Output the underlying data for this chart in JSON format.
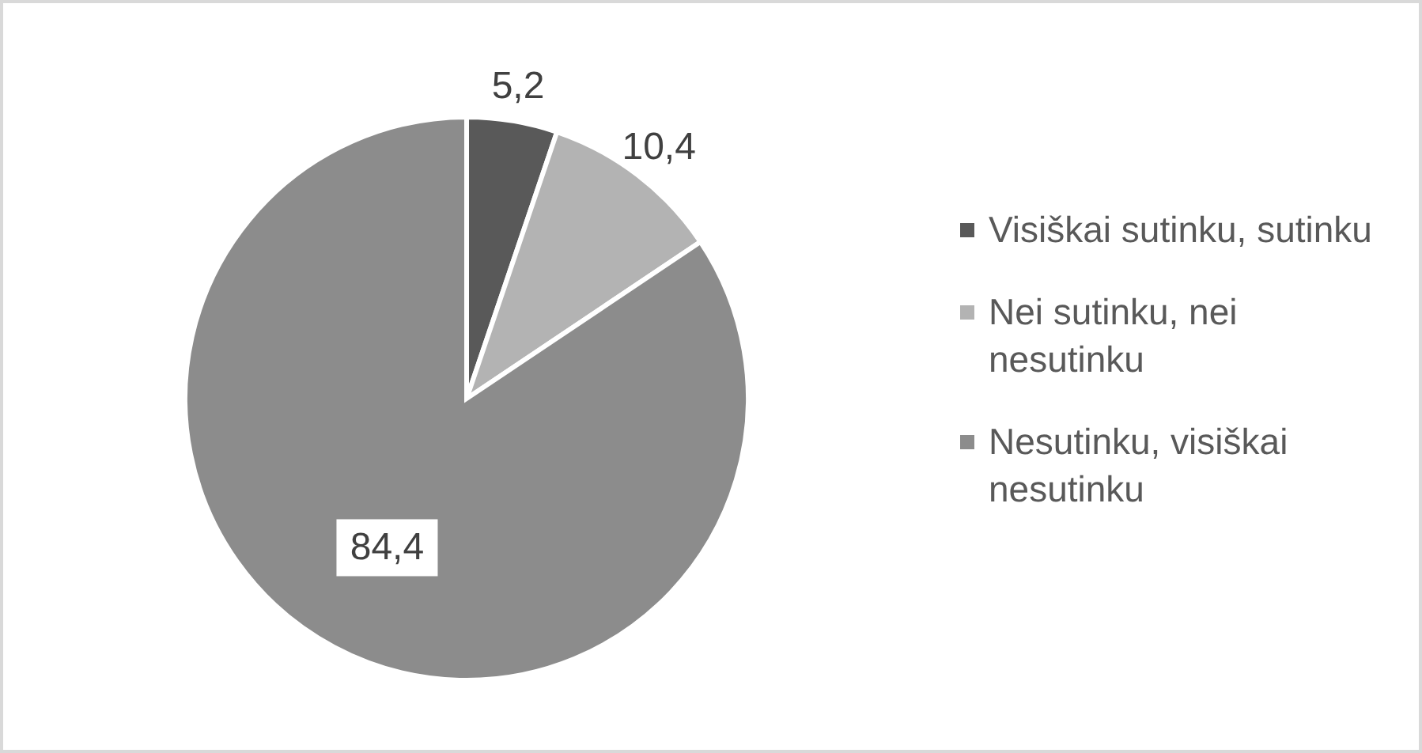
{
  "chart_data": {
    "type": "pie",
    "categories": [
      "Visiškai sutinku, sutinku",
      "Nei sutinku, nei nesutinku",
      "Nesutinku, visiškai nesutinku"
    ],
    "values": [
      5.2,
      10.4,
      84.4
    ],
    "colors": [
      "#595959",
      "#b3b3b3",
      "#8c8c8c"
    ],
    "value_labels": [
      "5,2",
      "10,4",
      "84,4"
    ],
    "legend": "right"
  }
}
